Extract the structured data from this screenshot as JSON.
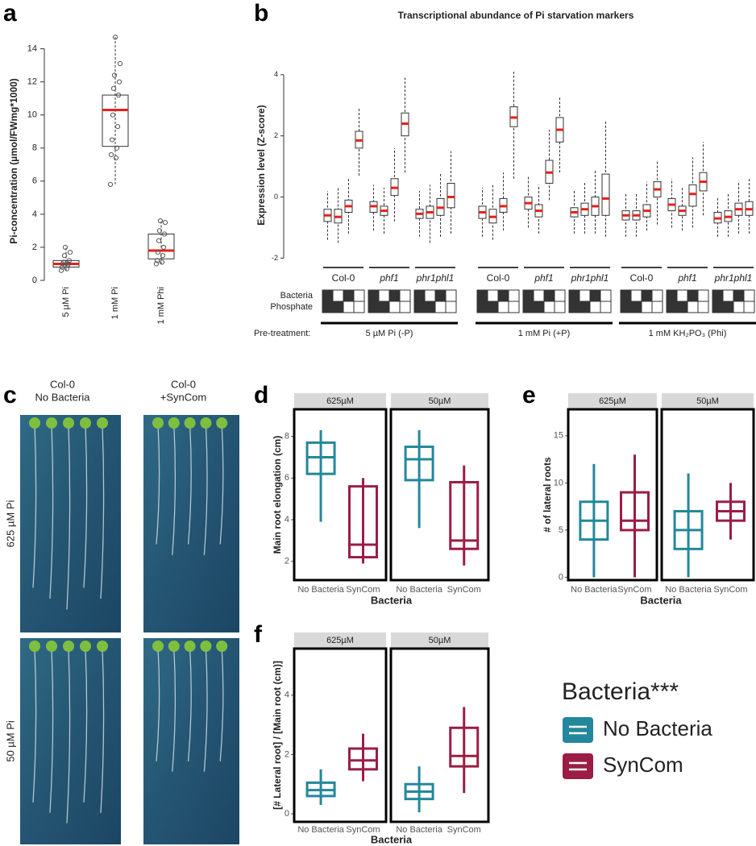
{
  "chart_data": [
    {
      "type": "box",
      "panel": "a",
      "ylabel": "Pi-concentration (µmol/FWmg*1000)",
      "categories": [
        "5 µM Pi",
        "1 mM Pi",
        "1 mM Phi"
      ],
      "values": [
        [
          0.6,
          0.8,
          1.0,
          1.2,
          2.0
        ],
        [
          5.8,
          8.1,
          10.3,
          11.2,
          14.7
        ],
        [
          1.0,
          1.3,
          1.8,
          2.8,
          3.6
        ]
      ],
      "points": [
        [
          0.6,
          0.7,
          0.8,
          0.9,
          1.0,
          1.0,
          1.1,
          1.2,
          1.5,
          1.7,
          2.0
        ],
        [
          5.8,
          7.4,
          7.6,
          8.0,
          8.5,
          9.3,
          10.0,
          11.2,
          11.6,
          12.0,
          12.4,
          13.1,
          14.7
        ],
        [
          1.0,
          1.1,
          1.2,
          1.5,
          1.7,
          2.0,
          2.4,
          2.8,
          3.0,
          3.5,
          3.6
        ]
      ],
      "color": "#333333",
      "median_color": "#e8201a",
      "ylim": [
        0,
        15
      ],
      "yticks": [
        0,
        2,
        4,
        6,
        8,
        10,
        12,
        14
      ]
    },
    {
      "type": "box",
      "panel": "b",
      "title": "Transcriptional abundance of Pi starvation markers",
      "ylabel": "Expression level (Z-score)",
      "color": "#333333",
      "median_color": "#e8201a",
      "ylim": [
        -2.2,
        4.6
      ],
      "yticks": [
        -2,
        0,
        2,
        4
      ],
      "row_labels": [
        "Bacteria",
        "Phosphate"
      ],
      "pretreatment_label": "Pre-treatment:",
      "groups": [
        {
          "label": "5 µM Pi (-P)",
          "genotypes": [
            {
              "name": "Col-0",
              "italic": false,
              "values": [
                [
                  -1.4,
                  -0.8,
                  -0.6,
                  -0.4,
                  0.2
                ],
                [
                  -1.5,
                  -0.85,
                  -0.65,
                  -0.4,
                  0.3
                ],
                [
                  -1.2,
                  -0.5,
                  -0.3,
                  -0.1,
                  0.6
                ],
                [
                  0.7,
                  1.6,
                  1.85,
                  2.15,
                  2.9
                ]
              ]
            },
            {
              "name": "phf1",
              "italic": true,
              "values": [
                [
                  -1.1,
                  -0.5,
                  -0.3,
                  -0.15,
                  0.4
                ],
                [
                  -1.2,
                  -0.6,
                  -0.45,
                  -0.3,
                  0.3
                ],
                [
                  -0.8,
                  0.05,
                  0.3,
                  0.6,
                  1.6
                ],
                [
                  0.8,
                  2.0,
                  2.4,
                  2.75,
                  3.9
                ]
              ]
            },
            {
              "name": "phr1phl1",
              "italic": true,
              "values": [
                [
                  -1.3,
                  -0.7,
                  -0.55,
                  -0.4,
                  0.2
                ],
                [
                  -1.5,
                  -0.7,
                  -0.5,
                  -0.3,
                  0.4
                ],
                [
                  -1.3,
                  -0.6,
                  -0.35,
                  -0.05,
                  0.8
                ],
                [
                  -1.2,
                  -0.35,
                  0.0,
                  0.45,
                  1.5
                ]
              ]
            }
          ]
        },
        {
          "label": "1 mM Pi (+P)",
          "genotypes": [
            {
              "name": "Col-0",
              "italic": false,
              "values": [
                [
                  -1.3,
                  -0.7,
                  -0.5,
                  -0.3,
                  0.3
                ],
                [
                  -1.4,
                  -0.85,
                  -0.65,
                  -0.4,
                  0.4
                ],
                [
                  -1.1,
                  -0.5,
                  -0.3,
                  -0.05,
                  0.8
                ],
                [
                  0.6,
                  2.3,
                  2.6,
                  2.95,
                  4.1
                ]
              ]
            },
            {
              "name": "phf1",
              "italic": true,
              "values": [
                [
                  -1.0,
                  -0.4,
                  -0.2,
                  0.0,
                  0.7
                ],
                [
                  -1.2,
                  -0.65,
                  -0.45,
                  -0.25,
                  0.4
                ],
                [
                  -0.1,
                  0.45,
                  0.8,
                  1.2,
                  2.2
                ],
                [
                  0.8,
                  1.8,
                  2.2,
                  2.6,
                  3.3
                ]
              ]
            },
            {
              "name": "phr1phl1",
              "italic": true,
              "values": [
                [
                  -1.2,
                  -0.65,
                  -0.5,
                  -0.35,
                  0.2
                ],
                [
                  -1.2,
                  -0.6,
                  -0.4,
                  -0.2,
                  0.5
                ],
                [
                  -1.2,
                  -0.6,
                  -0.3,
                  0.0,
                  0.9
                ],
                [
                  -1.3,
                  -0.6,
                  -0.05,
                  0.75,
                  2.5
                ]
              ]
            }
          ]
        },
        {
          "label": "1 mM KH₂PO₃ (Phi)",
          "genotypes": [
            {
              "name": "Col-0",
              "italic": false,
              "values": [
                [
                  -1.3,
                  -0.75,
                  -0.6,
                  -0.45,
                  0.1
                ],
                [
                  -1.3,
                  -0.75,
                  -0.6,
                  -0.45,
                  0.1
                ],
                [
                  -1.1,
                  -0.65,
                  -0.45,
                  -0.25,
                  0.5
                ],
                [
                  -0.9,
                  0.0,
                  0.25,
                  0.5,
                  1.2
                ]
              ]
            },
            {
              "name": "phf1",
              "italic": true,
              "values": [
                [
                  -1.0,
                  -0.45,
                  -0.25,
                  -0.05,
                  0.6
                ],
                [
                  -1.1,
                  -0.6,
                  -0.45,
                  -0.3,
                  0.3
                ],
                [
                  -1.0,
                  -0.3,
                  0.1,
                  0.4,
                  1.3
                ],
                [
                  -0.6,
                  0.2,
                  0.5,
                  0.8,
                  1.8
                ]
              ]
            },
            {
              "name": "phr1phl1",
              "italic": true,
              "values": [
                [
                  -1.3,
                  -0.85,
                  -0.7,
                  -0.5,
                  0.0
                ],
                [
                  -1.3,
                  -0.8,
                  -0.65,
                  -0.45,
                  0.1
                ],
                [
                  -1.2,
                  -0.6,
                  -0.4,
                  -0.2,
                  0.5
                ],
                [
                  -1.2,
                  -0.6,
                  -0.4,
                  -0.15,
                  0.6
                ]
              ]
            }
          ]
        }
      ]
    },
    {
      "type": "facet-box",
      "panel": "d",
      "ylabel": "Main root elongation (cm)",
      "xlabel": "Bacteria",
      "facets": [
        "625µM",
        "50µM"
      ],
      "categories": [
        "No Bacteria",
        "SynCom"
      ],
      "series": [
        {
          "name": "No Bacteria",
          "color": "#23889b",
          "values": [
            [
              3.9,
              6.2,
              7.0,
              7.7,
              8.3
            ],
            [
              3.6,
              5.9,
              6.9,
              7.5,
              8.3
            ]
          ]
        },
        {
          "name": "SynCom",
          "color": "#9b1d45",
          "values": [
            [
              1.9,
              2.2,
              2.8,
              5.6,
              6.0
            ],
            [
              1.8,
              2.6,
              3.0,
              5.8,
              6.6
            ]
          ]
        }
      ],
      "ylim": [
        1.1,
        9.3
      ],
      "yticks": [
        2,
        4,
        6,
        8
      ]
    },
    {
      "type": "facet-box",
      "panel": "e",
      "ylabel": "# of lateral roots",
      "xlabel": "Bacteria",
      "facets": [
        "625µM",
        "50µM"
      ],
      "categories": [
        "No Bacteria",
        "SynCom"
      ],
      "series": [
        {
          "name": "No Bacteria",
          "color": "#23889b",
          "values": [
            [
              0,
              4,
              6,
              8,
              12
            ],
            [
              0,
              3,
              5,
              7,
              11
            ]
          ]
        },
        {
          "name": "SynCom",
          "color": "#9b1d45",
          "values": [
            [
              0,
              5,
              6,
              9,
              13
            ],
            [
              4,
              6,
              7,
              8,
              10
            ]
          ]
        }
      ],
      "ylim": [
        -0.3,
        17.8
      ],
      "yticks": [
        0,
        5,
        10,
        15
      ]
    },
    {
      "type": "facet-box",
      "panel": "f",
      "ylabel": "[# Lateral root] / [Main root (cm)]",
      "xlabel": "Bacteria",
      "facets": [
        "625µM",
        "50µM"
      ],
      "categories": [
        "No Bacteria",
        "SynCom"
      ],
      "series": [
        {
          "name": "No Bacteria",
          "color": "#23889b",
          "values": [
            [
              0.3,
              0.6,
              0.8,
              1.05,
              1.5
            ],
            [
              0.05,
              0.5,
              0.75,
              1.0,
              1.6
            ]
          ]
        },
        {
          "name": "SynCom",
          "color": "#9b1d45",
          "values": [
            [
              1.1,
              1.5,
              1.8,
              2.2,
              2.7
            ],
            [
              0.7,
              1.6,
              1.95,
              2.9,
              3.6
            ]
          ]
        }
      ],
      "ylim": [
        -0.27,
        5.57
      ],
      "yticks": [
        0,
        2,
        4
      ]
    }
  ],
  "photo_panel": {
    "panel": "c",
    "column_labels": [
      [
        "Col-0",
        "No Bacteria"
      ],
      [
        "Col-0",
        "+SynCom"
      ]
    ],
    "row_labels": [
      "625 µM Pi",
      "50 µM Pi"
    ]
  },
  "legend_title": "Bacteria***"
}
